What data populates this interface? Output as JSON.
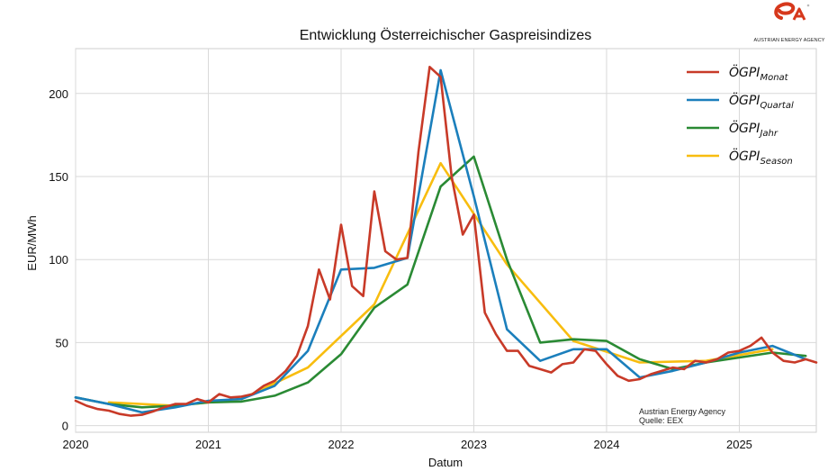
{
  "logo": {
    "brand_text": "AUSTRIAN ENERGY AGENCY"
  },
  "source_note": {
    "line1": "Austrian Energy Agency",
    "line2": "Quelle: EEX"
  },
  "chart_data": {
    "type": "line",
    "title": "Entwicklung Österreichischer Gaspreisindizes",
    "xlabel": "Datum",
    "ylabel": "EUR/MWh",
    "xlim": [
      2020.0,
      2025.58
    ],
    "ylim": [
      -4,
      227
    ],
    "xticks": [
      2020,
      2021,
      2022,
      2023,
      2024,
      2025
    ],
    "xtick_labels": [
      "2020",
      "2021",
      "2022",
      "2023",
      "2024",
      "2025"
    ],
    "yticks": [
      0,
      50,
      100,
      150,
      200
    ],
    "ytick_labels": [
      "0",
      "50",
      "100",
      "150",
      "200"
    ],
    "grid": true,
    "legend_position": "top-right",
    "series": [
      {
        "name": "Monat",
        "label_base": "ÖGPI",
        "label_sub": "Monat",
        "color": "#c83a28",
        "x": [
          2020.0,
          2020.083,
          2020.167,
          2020.25,
          2020.333,
          2020.417,
          2020.5,
          2020.583,
          2020.667,
          2020.75,
          2020.833,
          2020.917,
          2021.0,
          2021.083,
          2021.167,
          2021.25,
          2021.333,
          2021.417,
          2021.5,
          2021.583,
          2021.667,
          2021.75,
          2021.833,
          2021.917,
          2022.0,
          2022.083,
          2022.167,
          2022.25,
          2022.333,
          2022.417,
          2022.5,
          2022.583,
          2022.667,
          2022.75,
          2022.833,
          2022.917,
          2023.0,
          2023.083,
          2023.167,
          2023.25,
          2023.333,
          2023.417,
          2023.5,
          2023.583,
          2023.667,
          2023.75,
          2023.833,
          2023.917,
          2024.0,
          2024.083,
          2024.167,
          2024.25,
          2024.333,
          2024.417,
          2024.5,
          2024.583,
          2024.667,
          2024.75,
          2024.833,
          2024.917,
          2025.0,
          2025.083,
          2025.167,
          2025.25,
          2025.333,
          2025.417,
          2025.5,
          2025.58
        ],
        "values": [
          15,
          12,
          10,
          9,
          7,
          6,
          6.5,
          8.5,
          11,
          13,
          13,
          16,
          14,
          19,
          17,
          17.5,
          19,
          24,
          27,
          33,
          42,
          60,
          94,
          76,
          121,
          84,
          78,
          141,
          105,
          100,
          101,
          165,
          216,
          210,
          150,
          115,
          127,
          68,
          55,
          45,
          45,
          36,
          34,
          32,
          37,
          38,
          46,
          45,
          37,
          30,
          27,
          28,
          31,
          33,
          35,
          34,
          39,
          38,
          40,
          44,
          45,
          48,
          53,
          44,
          39,
          38,
          40,
          38
        ]
      },
      {
        "name": "Quartal",
        "label_base": "ÖGPI",
        "label_sub": "Quartal",
        "color": "#1b7fbc",
        "x": [
          2020.0,
          2020.25,
          2020.5,
          2020.75,
          2021.0,
          2021.25,
          2021.5,
          2021.75,
          2022.0,
          2022.25,
          2022.5,
          2022.75,
          2023.0,
          2023.25,
          2023.5,
          2023.75,
          2024.0,
          2024.25,
          2024.5,
          2024.75,
          2025.0,
          2025.25,
          2025.5
        ],
        "values": [
          17,
          13,
          8,
          11,
          15,
          16,
          24,
          45,
          94,
          95,
          101,
          214,
          138,
          58,
          39,
          46,
          46,
          29,
          33,
          38,
          44,
          48,
          40
        ]
      },
      {
        "name": "Jahr",
        "label_base": "ÖGPI",
        "label_sub": "Jahr",
        "color": "#2a8a34",
        "x": [
          2020.0,
          2020.25,
          2020.5,
          2020.75,
          2021.0,
          2021.25,
          2021.5,
          2021.75,
          2022.0,
          2022.25,
          2022.5,
          2022.75,
          2023.0,
          2023.25,
          2023.5,
          2023.75,
          2024.0,
          2024.25,
          2024.5,
          2024.75,
          2025.0,
          2025.25,
          2025.5
        ],
        "values": [
          17,
          13,
          11,
          12,
          14,
          14.5,
          18,
          26,
          43,
          71,
          85,
          144,
          162,
          100,
          50,
          52,
          51,
          40,
          34,
          38,
          41,
          44,
          42
        ]
      },
      {
        "name": "Season",
        "label_base": "ÖGPI",
        "label_sub": "Season",
        "color": "#f8bd0f",
        "x": [
          2020.25,
          2020.75,
          2021.25,
          2021.75,
          2022.25,
          2022.75,
          2023.25,
          2023.75,
          2024.25,
          2024.75,
          2025.25
        ],
        "values": [
          14,
          12,
          16,
          35,
          73,
          158,
          97,
          51,
          38,
          39,
          46
        ]
      }
    ]
  }
}
